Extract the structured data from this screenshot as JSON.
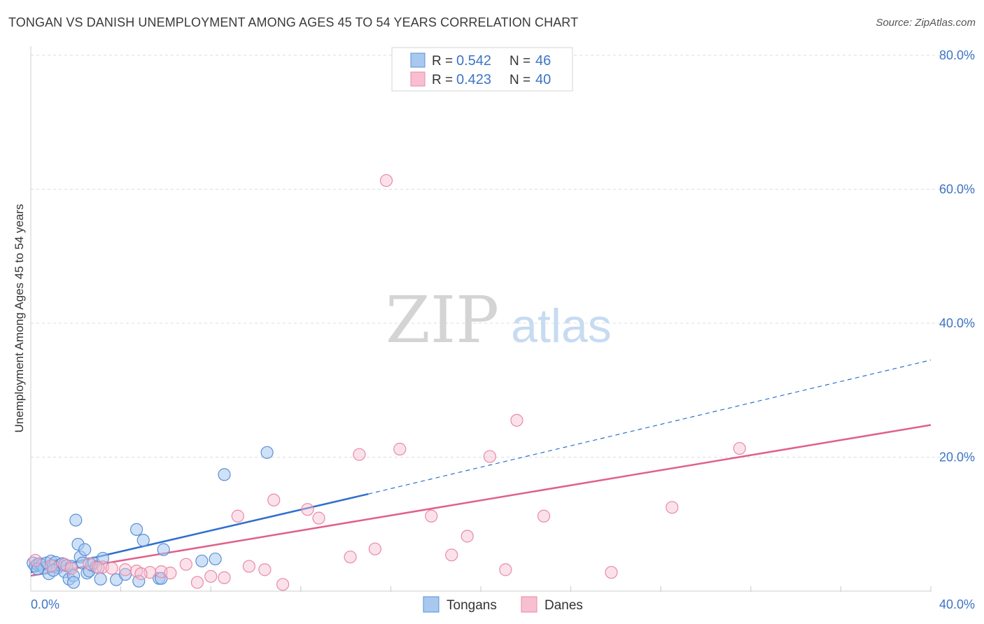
{
  "header": {
    "title": "TONGAN VS DANISH UNEMPLOYMENT AMONG AGES 45 TO 54 YEARS CORRELATION CHART",
    "source": "Source: ZipAtlas.com"
  },
  "watermark": {
    "zip": "ZIP",
    "atlas": "atlas"
  },
  "colors": {
    "tongans_fill": "#a8c8f0",
    "tongans_stroke": "#5b8fd6",
    "tongans_line": "#2f6fcf",
    "danes_fill": "#f7bfd0",
    "danes_stroke": "#e88aa6",
    "danes_line": "#e0608a",
    "axis_text": "#3d74c6",
    "grid": "#dcdcdc"
  },
  "chart_data": {
    "type": "scatter",
    "title": "TONGAN VS DANISH UNEMPLOYMENT AMONG AGES 45 TO 54 YEARS CORRELATION CHART",
    "xlabel": "",
    "ylabel": "Unemployment Among Ages 45 to 54 years",
    "xlim": [
      0,
      40
    ],
    "ylim": [
      0,
      80
    ],
    "x_tick_labels": [
      {
        "value": 0,
        "label": "0.0%"
      },
      {
        "value": 40,
        "label": "40.0%"
      }
    ],
    "y_tick_labels": [
      {
        "value": 20,
        "label": "20.0%"
      },
      {
        "value": 40,
        "label": "40.0%"
      },
      {
        "value": 60,
        "label": "60.0%"
      },
      {
        "value": 80,
        "label": "80.0%"
      }
    ],
    "legend": [
      {
        "series": "Tongans",
        "r_label": "R =",
        "r_value": "0.542",
        "n_label": "N =",
        "n_value": "46"
      },
      {
        "series": "Danes",
        "r_label": "R =",
        "r_value": "0.423",
        "n_label": "N =",
        "n_value": "40"
      }
    ],
    "series": [
      {
        "name": "Tongans",
        "points": [
          [
            0.1,
            4.2
          ],
          [
            0.2,
            3.7
          ],
          [
            0.3,
            4.0
          ],
          [
            0.4,
            4.1
          ],
          [
            0.5,
            3.9
          ],
          [
            0.6,
            3.4
          ],
          [
            0.7,
            4.2
          ],
          [
            0.8,
            2.6
          ],
          [
            0.9,
            4.5
          ],
          [
            1.0,
            3.8
          ],
          [
            1.1,
            4.3
          ],
          [
            1.2,
            3.5
          ],
          [
            1.3,
            3.9
          ],
          [
            1.4,
            4.1
          ],
          [
            1.5,
            2.9
          ],
          [
            1.6,
            3.8
          ],
          [
            1.7,
            1.8
          ],
          [
            1.8,
            3.7
          ],
          [
            1.9,
            2.3
          ],
          [
            1.9,
            1.3
          ],
          [
            2.0,
            10.6
          ],
          [
            2.1,
            7.0
          ],
          [
            2.2,
            5.1
          ],
          [
            2.3,
            4.2
          ],
          [
            2.4,
            6.2
          ],
          [
            2.5,
            2.7
          ],
          [
            2.6,
            3.0
          ],
          [
            2.7,
            3.9
          ],
          [
            2.8,
            4.2
          ],
          [
            3.1,
            1.8
          ],
          [
            3.2,
            4.9
          ],
          [
            3.8,
            1.7
          ],
          [
            4.2,
            2.5
          ],
          [
            4.7,
            9.2
          ],
          [
            4.8,
            1.5
          ],
          [
            5.0,
            7.6
          ],
          [
            5.7,
            1.9
          ],
          [
            5.8,
            1.9
          ],
          [
            5.9,
            6.2
          ],
          [
            7.6,
            4.5
          ],
          [
            8.2,
            4.8
          ],
          [
            8.6,
            17.4
          ],
          [
            10.5,
            20.7
          ],
          [
            0.3,
            3.3
          ],
          [
            1.0,
            3.1
          ],
          [
            2.9,
            3.6
          ]
        ]
      },
      {
        "name": "Danes",
        "points": [
          [
            0.2,
            4.6
          ],
          [
            0.9,
            3.8
          ],
          [
            1.5,
            4.0
          ],
          [
            2.6,
            4.1
          ],
          [
            3.2,
            3.6
          ],
          [
            3.6,
            3.4
          ],
          [
            4.2,
            3.2
          ],
          [
            4.7,
            3.0
          ],
          [
            5.3,
            2.8
          ],
          [
            5.8,
            2.9
          ],
          [
            6.2,
            2.7
          ],
          [
            6.9,
            4.0
          ],
          [
            7.4,
            1.3
          ],
          [
            8.0,
            2.2
          ],
          [
            8.6,
            2.0
          ],
          [
            9.2,
            11.2
          ],
          [
            9.7,
            3.7
          ],
          [
            10.4,
            3.2
          ],
          [
            10.8,
            13.6
          ],
          [
            11.2,
            1.0
          ],
          [
            12.3,
            12.2
          ],
          [
            12.8,
            10.9
          ],
          [
            14.2,
            5.1
          ],
          [
            14.6,
            20.4
          ],
          [
            15.3,
            6.3
          ],
          [
            15.8,
            61.3
          ],
          [
            16.4,
            21.2
          ],
          [
            17.8,
            11.2
          ],
          [
            18.7,
            5.4
          ],
          [
            19.4,
            8.2
          ],
          [
            20.4,
            20.1
          ],
          [
            21.1,
            3.2
          ],
          [
            21.6,
            25.5
          ],
          [
            22.8,
            11.2
          ],
          [
            25.8,
            2.8
          ],
          [
            28.5,
            12.5
          ],
          [
            31.5,
            21.3
          ],
          [
            1.8,
            3.4
          ],
          [
            3.0,
            3.5
          ],
          [
            4.9,
            2.6
          ]
        ]
      }
    ],
    "trendlines": [
      {
        "series": "Tongans",
        "x0": 0,
        "y0": 2.8,
        "x1": 15,
        "y1": 14.5,
        "dashed_to_x": 40,
        "dashed_to_y": 34.5
      },
      {
        "series": "Danes",
        "x0": 0,
        "y0": 2.3,
        "x1": 40,
        "y1": 24.8
      }
    ]
  }
}
